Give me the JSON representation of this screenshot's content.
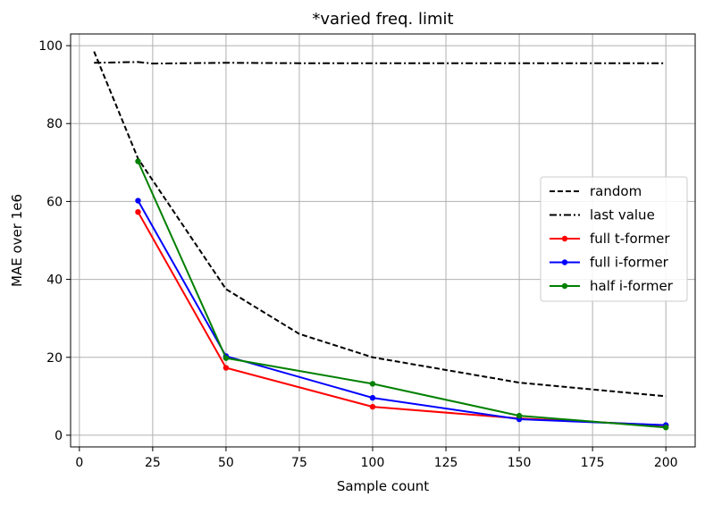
{
  "chart_data": {
    "type": "line",
    "title": "*varied freq. limit",
    "xlabel": "Sample count",
    "ylabel": "MAE over 1e6",
    "xlim": [
      -3,
      210
    ],
    "ylim": [
      -3,
      103
    ],
    "xticks": [
      0,
      25,
      50,
      75,
      100,
      125,
      150,
      175,
      200
    ],
    "yticks": [
      0,
      20,
      40,
      60,
      80,
      100
    ],
    "grid": true,
    "legend_position": "center-right",
    "series": [
      {
        "name": "random",
        "color": "#000000",
        "style": "dashed",
        "marker": false,
        "x": [
          5,
          20,
          50,
          75,
          100,
          150,
          200
        ],
        "y": [
          98.5,
          71,
          37.5,
          26,
          20,
          13.5,
          10
        ]
      },
      {
        "name": "last value",
        "color": "#000000",
        "style": "dashdot",
        "marker": false,
        "x": [
          5,
          20,
          25,
          50,
          75,
          100,
          150,
          200
        ],
        "y": [
          95.6,
          95.8,
          95.4,
          95.6,
          95.5,
          95.5,
          95.5,
          95.5
        ]
      },
      {
        "name": "full t-former",
        "color": "#ff0000",
        "style": "solid",
        "marker": true,
        "x": [
          20,
          50,
          100,
          150,
          200
        ],
        "y": [
          57.3,
          17.3,
          7.3,
          4.3,
          2.5
        ]
      },
      {
        "name": "full i-former",
        "color": "#0000ff",
        "style": "solid",
        "marker": true,
        "x": [
          20,
          50,
          100,
          150,
          200
        ],
        "y": [
          60.2,
          20.3,
          9.6,
          4.1,
          2.6
        ]
      },
      {
        "name": "half i-former",
        "color": "#008000",
        "style": "solid",
        "marker": true,
        "x": [
          20,
          50,
          100,
          150,
          200
        ],
        "y": [
          70.3,
          19.8,
          13.2,
          5,
          2
        ]
      }
    ]
  }
}
